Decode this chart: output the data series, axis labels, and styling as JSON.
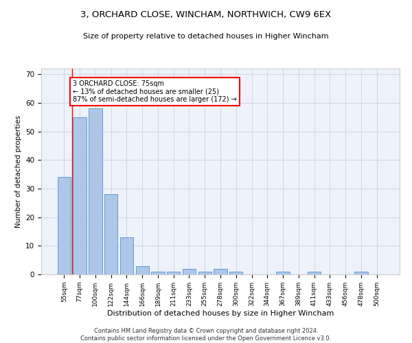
{
  "title1": "3, ORCHARD CLOSE, WINCHAM, NORTHWICH, CW9 6EX",
  "title2": "Size of property relative to detached houses in Higher Wincham",
  "xlabel": "Distribution of detached houses by size in Higher Wincham",
  "ylabel": "Number of detached properties",
  "bar_labels": [
    "55sqm",
    "77sqm",
    "100sqm",
    "122sqm",
    "144sqm",
    "166sqm",
    "189sqm",
    "211sqm",
    "233sqm",
    "255sqm",
    "278sqm",
    "300sqm",
    "322sqm",
    "344sqm",
    "367sqm",
    "389sqm",
    "411sqm",
    "433sqm",
    "456sqm",
    "478sqm",
    "500sqm"
  ],
  "bar_heights": [
    34,
    55,
    58,
    28,
    13,
    3,
    1,
    1,
    2,
    1,
    2,
    1,
    0,
    0,
    1,
    0,
    1,
    0,
    0,
    1,
    0
  ],
  "bar_color": "#aec6e8",
  "bar_edge_color": "#5a9fd4",
  "annotation_box_text": "3 ORCHARD CLOSE: 75sqm\n← 13% of detached houses are smaller (25)\n87% of semi-detached houses are larger (172) →",
  "grid_color": "#d0d8e8",
  "background_color": "#eef2fa",
  "footer_text": "Contains HM Land Registry data © Crown copyright and database right 2024.\nContains public sector information licensed under the Open Government Licence v3.0.",
  "ylim": [
    0,
    72
  ],
  "yticks": [
    0,
    10,
    20,
    30,
    40,
    50,
    60,
    70
  ]
}
